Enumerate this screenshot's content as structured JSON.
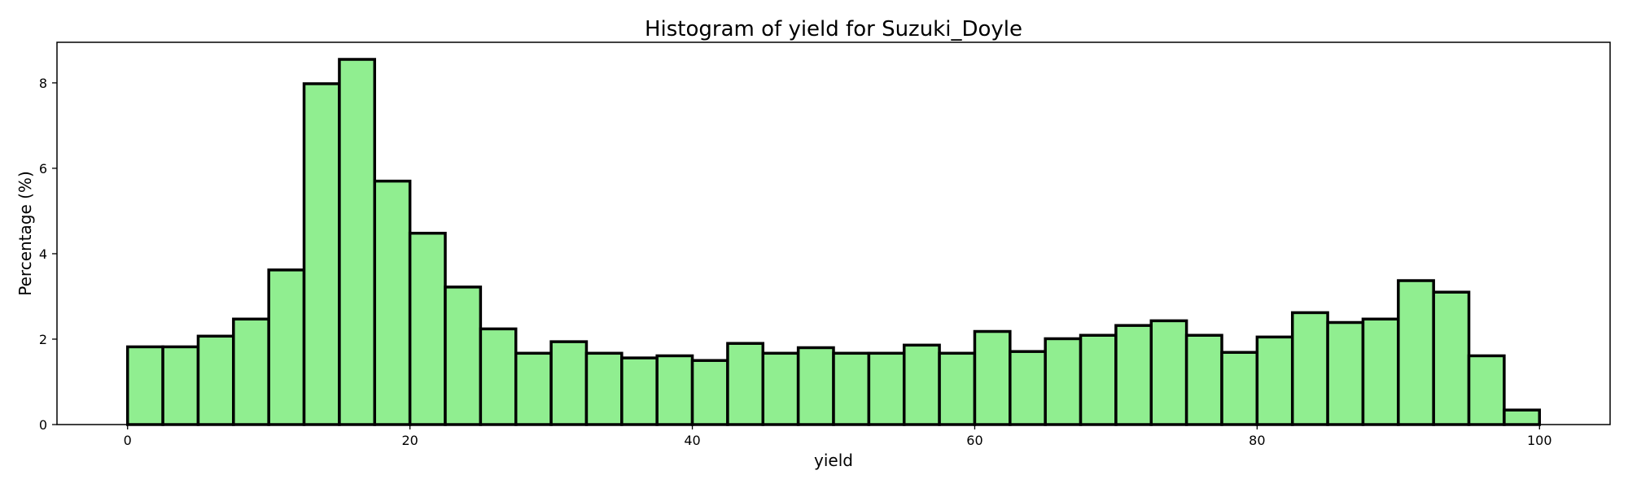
{
  "chart_data": {
    "type": "bar",
    "title": "Histogram of yield for Suzuki_Doyle",
    "xlabel": "yield",
    "ylabel": "Percentage (%)",
    "xlim": [
      -5,
      105
    ],
    "ylim": [
      0,
      8.95
    ],
    "bin_edges": [
      0,
      2.5,
      5,
      7.5,
      10,
      12.5,
      15,
      17.5,
      20,
      22.5,
      25,
      27.5,
      30,
      32.5,
      35,
      37.5,
      40,
      42.5,
      45,
      47.5,
      50,
      52.5,
      55,
      57.5,
      60,
      62.5,
      65,
      67.5,
      70,
      72.5,
      75,
      77.5,
      80,
      82.5,
      85,
      87.5,
      90,
      92.5,
      95,
      97.5,
      100
    ],
    "values": [
      1.82,
      1.82,
      2.07,
      2.47,
      3.62,
      7.98,
      8.55,
      5.7,
      4.48,
      3.22,
      2.24,
      1.67,
      1.94,
      1.67,
      1.56,
      1.61,
      1.5,
      1.9,
      1.67,
      1.8,
      1.67,
      1.67,
      1.86,
      1.67,
      2.18,
      1.71,
      2.01,
      2.09,
      2.32,
      2.43,
      2.09,
      1.69,
      2.05,
      2.62,
      2.39,
      2.47,
      3.37,
      3.1,
      1.61,
      0.34
    ],
    "x_ticks": [
      0,
      20,
      40,
      60,
      80,
      100
    ],
    "y_ticks": [
      0,
      2,
      4,
      6,
      8
    ],
    "bar_color": "#90ee90",
    "edge_color": "#000000",
    "grid": false,
    "legend": "none"
  }
}
